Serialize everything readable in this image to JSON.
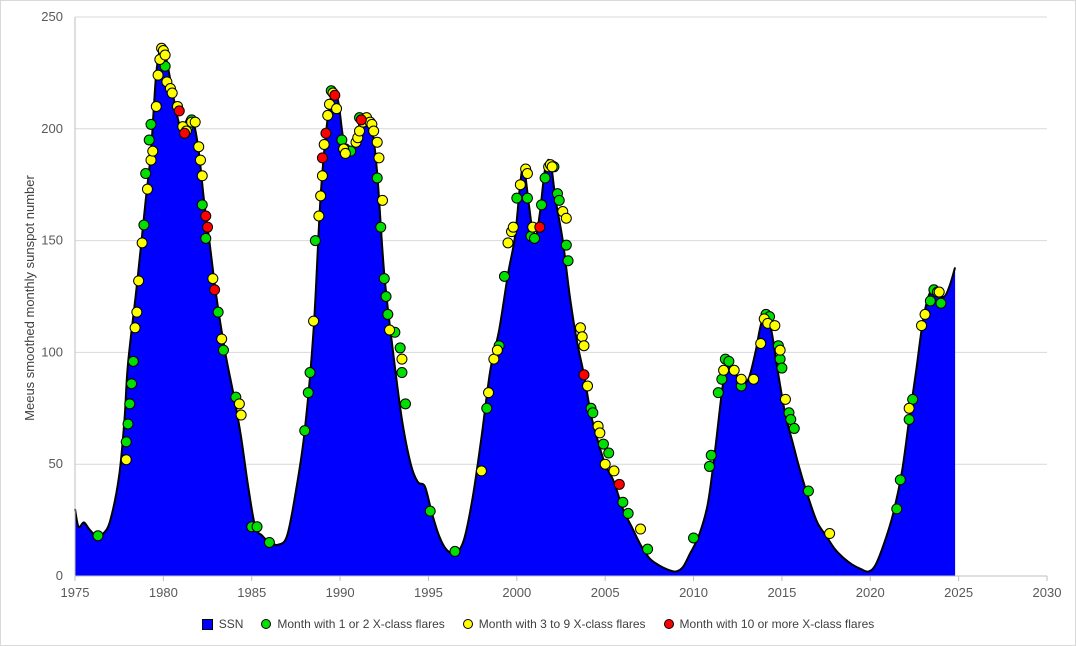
{
  "chart_data": {
    "type": "area",
    "ylabel": "Meeus smoothed monthly sunspot number",
    "xlim": [
      1975,
      2030
    ],
    "ylim": [
      0,
      250
    ],
    "x_ticks": [
      1975,
      1980,
      1985,
      1990,
      1995,
      2000,
      2005,
      2010,
      2015,
      2020,
      2025,
      2030
    ],
    "y_ticks": [
      0,
      50,
      100,
      150,
      200,
      250
    ],
    "grid": "horizontal",
    "legend_position": "bottom",
    "colors": {
      "ssn": "#0000ff",
      "x12": "#00e000",
      "x39": "#ffff00",
      "x10": "#ff0000"
    },
    "ssn_series": {
      "name": "SSN",
      "points": [
        [
          1975.0,
          30
        ],
        [
          1975.2,
          22
        ],
        [
          1975.5,
          24
        ],
        [
          1975.8,
          21
        ],
        [
          1976.2,
          18
        ],
        [
          1976.6,
          19
        ],
        [
          1977.0,
          25
        ],
        [
          1977.5,
          45
        ],
        [
          1977.8,
          70
        ],
        [
          1978.0,
          95
        ],
        [
          1978.5,
          130
        ],
        [
          1979.0,
          168
        ],
        [
          1979.3,
          190
        ],
        [
          1979.6,
          225
        ],
        [
          1979.9,
          237
        ],
        [
          1980.2,
          230
        ],
        [
          1980.6,
          213
        ],
        [
          1981.0,
          200
        ],
        [
          1981.4,
          205
        ],
        [
          1981.7,
          203
        ],
        [
          1982.0,
          190
        ],
        [
          1982.3,
          168
        ],
        [
          1982.6,
          150
        ],
        [
          1983.0,
          125
        ],
        [
          1983.5,
          100
        ],
        [
          1984.0,
          80
        ],
        [
          1984.4,
          62
        ],
        [
          1984.8,
          40
        ],
        [
          1985.2,
          22
        ],
        [
          1985.6,
          18
        ],
        [
          1986.0,
          15
        ],
        [
          1986.5,
          14
        ],
        [
          1987.0,
          18
        ],
        [
          1987.5,
          38
        ],
        [
          1988.0,
          65
        ],
        [
          1988.5,
          110
        ],
        [
          1988.9,
          170
        ],
        [
          1989.3,
          205
        ],
        [
          1989.6,
          217
        ],
        [
          1989.9,
          212
        ],
        [
          1990.2,
          195
        ],
        [
          1990.6,
          190
        ],
        [
          1991.0,
          200
        ],
        [
          1991.4,
          205
        ],
        [
          1991.8,
          200
        ],
        [
          1992.1,
          180
        ],
        [
          1992.5,
          135
        ],
        [
          1993.0,
          100
        ],
        [
          1993.5,
          70
        ],
        [
          1994.0,
          50
        ],
        [
          1994.4,
          42
        ],
        [
          1994.8,
          40
        ],
        [
          1995.2,
          28
        ],
        [
          1995.6,
          18
        ],
        [
          1996.0,
          12
        ],
        [
          1996.5,
          10
        ],
        [
          1997.0,
          16
        ],
        [
          1997.5,
          35
        ],
        [
          1998.0,
          62
        ],
        [
          1998.5,
          92
        ],
        [
          1999.0,
          110
        ],
        [
          1999.5,
          135
        ],
        [
          1999.9,
          152
        ],
        [
          2000.2,
          176
        ],
        [
          2000.4,
          183
        ],
        [
          2000.7,
          165
        ],
        [
          2001.0,
          150
        ],
        [
          2001.3,
          162
        ],
        [
          2001.6,
          182
        ],
        [
          2001.9,
          185
        ],
        [
          2002.2,
          168
        ],
        [
          2002.6,
          150
        ],
        [
          2003.0,
          125
        ],
        [
          2003.4,
          105
        ],
        [
          2003.8,
          90
        ],
        [
          2004.2,
          72
        ],
        [
          2004.6,
          60
        ],
        [
          2005.0,
          50
        ],
        [
          2005.5,
          42
        ],
        [
          2006.0,
          30
        ],
        [
          2006.5,
          22
        ],
        [
          2007.0,
          14
        ],
        [
          2007.5,
          8
        ],
        [
          2008.0,
          5
        ],
        [
          2008.5,
          3
        ],
        [
          2009.0,
          2
        ],
        [
          2009.4,
          4
        ],
        [
          2009.8,
          10
        ],
        [
          2010.3,
          18
        ],
        [
          2010.8,
          32
        ],
        [
          2011.2,
          55
        ],
        [
          2011.6,
          82
        ],
        [
          2011.9,
          97
        ],
        [
          2012.3,
          92
        ],
        [
          2012.7,
          87
        ],
        [
          2013.1,
          88
        ],
        [
          2013.5,
          100
        ],
        [
          2013.8,
          112
        ],
        [
          2014.1,
          117
        ],
        [
          2014.4,
          110
        ],
        [
          2014.8,
          90
        ],
        [
          2015.2,
          72
        ],
        [
          2015.6,
          60
        ],
        [
          2016.0,
          48
        ],
        [
          2016.5,
          35
        ],
        [
          2017.0,
          24
        ],
        [
          2017.5,
          18
        ],
        [
          2018.0,
          12
        ],
        [
          2018.5,
          8
        ],
        [
          2019.0,
          5
        ],
        [
          2019.5,
          3
        ],
        [
          2019.9,
          2
        ],
        [
          2020.3,
          5
        ],
        [
          2020.8,
          15
        ],
        [
          2021.3,
          28
        ],
        [
          2021.8,
          47
        ],
        [
          2022.2,
          70
        ],
        [
          2022.6,
          92
        ],
        [
          2023.0,
          115
        ],
        [
          2023.4,
          127
        ],
        [
          2023.8,
          126
        ],
        [
          2024.2,
          125
        ],
        [
          2024.5,
          130
        ],
        [
          2024.8,
          138
        ]
      ]
    },
    "flare_series": [
      {
        "name": "Month with 1 or 2 X-class flares",
        "color_key": "x12",
        "points": [
          [
            1976.3,
            18
          ],
          [
            1977.9,
            60
          ],
          [
            1978.0,
            68
          ],
          [
            1978.1,
            77
          ],
          [
            1978.2,
            86
          ],
          [
            1978.3,
            96
          ],
          [
            1978.9,
            157
          ],
          [
            1979.0,
            180
          ],
          [
            1979.2,
            195
          ],
          [
            1979.3,
            202
          ],
          [
            1980.1,
            228
          ],
          [
            1981.4,
            201
          ],
          [
            1981.6,
            204
          ],
          [
            1982.2,
            166
          ],
          [
            1982.4,
            151
          ],
          [
            1983.1,
            118
          ],
          [
            1983.4,
            101
          ],
          [
            1984.1,
            80
          ],
          [
            1985.0,
            22
          ],
          [
            1985.3,
            22
          ],
          [
            1986.0,
            15
          ],
          [
            1988.0,
            65
          ],
          [
            1988.2,
            82
          ],
          [
            1988.3,
            91
          ],
          [
            1988.6,
            150
          ],
          [
            1989.5,
            217
          ],
          [
            1990.1,
            195
          ],
          [
            1990.3,
            191
          ],
          [
            1990.6,
            190
          ],
          [
            1991.1,
            205
          ],
          [
            1992.1,
            178
          ],
          [
            1992.3,
            156
          ],
          [
            1992.5,
            133
          ],
          [
            1992.6,
            125
          ],
          [
            1992.7,
            117
          ],
          [
            1993.1,
            109
          ],
          [
            1993.4,
            102
          ],
          [
            1993.5,
            91
          ],
          [
            1993.7,
            77
          ],
          [
            1995.1,
            29
          ],
          [
            1996.5,
            11
          ],
          [
            1998.3,
            75
          ],
          [
            1999.0,
            103
          ],
          [
            1999.3,
            134
          ],
          [
            2000.0,
            169
          ],
          [
            2000.6,
            169
          ],
          [
            2000.8,
            152
          ],
          [
            2001.0,
            151
          ],
          [
            2001.4,
            166
          ],
          [
            2001.6,
            178
          ],
          [
            2002.1,
            183
          ],
          [
            2002.3,
            171
          ],
          [
            2002.4,
            168
          ],
          [
            2002.8,
            148
          ],
          [
            2002.9,
            141
          ],
          [
            2004.2,
            75
          ],
          [
            2004.3,
            73
          ],
          [
            2004.9,
            59
          ],
          [
            2005.2,
            55
          ],
          [
            2006.0,
            33
          ],
          [
            2006.3,
            28
          ],
          [
            2007.4,
            12
          ],
          [
            2010.0,
            17
          ],
          [
            2010.9,
            49
          ],
          [
            2011.0,
            54
          ],
          [
            2011.4,
            82
          ],
          [
            2011.6,
            88
          ],
          [
            2011.8,
            97
          ],
          [
            2012.0,
            96
          ],
          [
            2012.7,
            85
          ],
          [
            2014.1,
            117
          ],
          [
            2014.3,
            116
          ],
          [
            2014.8,
            103
          ],
          [
            2014.9,
            97
          ],
          [
            2015.0,
            93
          ],
          [
            2015.4,
            73
          ],
          [
            2015.5,
            70
          ],
          [
            2015.7,
            66
          ],
          [
            2016.5,
            38
          ],
          [
            2021.5,
            30
          ],
          [
            2021.7,
            43
          ],
          [
            2022.2,
            70
          ],
          [
            2022.4,
            79
          ],
          [
            2023.4,
            123
          ],
          [
            2023.6,
            128
          ],
          [
            2023.8,
            127
          ],
          [
            2024.0,
            122
          ]
        ]
      },
      {
        "name": "Month with 3 to 9 X-class flares",
        "color_key": "x39",
        "points": [
          [
            1977.9,
            52
          ],
          [
            1978.4,
            111
          ],
          [
            1978.5,
            118
          ],
          [
            1978.6,
            132
          ],
          [
            1978.8,
            149
          ],
          [
            1979.1,
            173
          ],
          [
            1979.3,
            186
          ],
          [
            1979.4,
            190
          ],
          [
            1979.6,
            210
          ],
          [
            1979.7,
            224
          ],
          [
            1979.8,
            231
          ],
          [
            1979.9,
            236
          ],
          [
            1980.0,
            235
          ],
          [
            1980.1,
            233
          ],
          [
            1980.2,
            221
          ],
          [
            1980.4,
            218
          ],
          [
            1980.5,
            216
          ],
          [
            1980.8,
            210
          ],
          [
            1981.1,
            201
          ],
          [
            1981.3,
            199
          ],
          [
            1981.6,
            203
          ],
          [
            1981.8,
            203
          ],
          [
            1982.0,
            192
          ],
          [
            1982.1,
            186
          ],
          [
            1982.2,
            179
          ],
          [
            1982.8,
            133
          ],
          [
            1983.3,
            106
          ],
          [
            1984.3,
            77
          ],
          [
            1984.4,
            72
          ],
          [
            1988.5,
            114
          ],
          [
            1988.8,
            161
          ],
          [
            1988.9,
            170
          ],
          [
            1989.0,
            179
          ],
          [
            1989.1,
            193
          ],
          [
            1989.3,
            206
          ],
          [
            1989.4,
            211
          ],
          [
            1989.6,
            216
          ],
          [
            1989.8,
            209
          ],
          [
            1990.2,
            191
          ],
          [
            1990.3,
            189
          ],
          [
            1990.9,
            194
          ],
          [
            1991.0,
            196
          ],
          [
            1991.1,
            199
          ],
          [
            1991.3,
            203
          ],
          [
            1991.5,
            205
          ],
          [
            1991.7,
            203
          ],
          [
            1991.8,
            202
          ],
          [
            1991.9,
            199
          ],
          [
            1992.1,
            194
          ],
          [
            1992.2,
            187
          ],
          [
            1992.4,
            168
          ],
          [
            1992.8,
            110
          ],
          [
            1993.5,
            97
          ],
          [
            1998.0,
            47
          ],
          [
            1998.4,
            82
          ],
          [
            1998.7,
            97
          ],
          [
            1998.9,
            101
          ],
          [
            1999.5,
            149
          ],
          [
            1999.7,
            154
          ],
          [
            1999.8,
            156
          ],
          [
            2000.2,
            175
          ],
          [
            2000.5,
            182
          ],
          [
            2000.6,
            180
          ],
          [
            2000.9,
            156
          ],
          [
            2001.8,
            183
          ],
          [
            2001.9,
            184
          ],
          [
            2002.0,
            183
          ],
          [
            2002.6,
            163
          ],
          [
            2002.8,
            160
          ],
          [
            2003.6,
            111
          ],
          [
            2003.7,
            107
          ],
          [
            2003.8,
            103
          ],
          [
            2004.0,
            85
          ],
          [
            2004.6,
            67
          ],
          [
            2004.7,
            64
          ],
          [
            2005.0,
            50
          ],
          [
            2005.5,
            47
          ],
          [
            2007.0,
            21
          ],
          [
            2011.7,
            92
          ],
          [
            2012.3,
            92
          ],
          [
            2012.7,
            88
          ],
          [
            2013.4,
            88
          ],
          [
            2013.8,
            104
          ],
          [
            2014.0,
            115
          ],
          [
            2014.2,
            113
          ],
          [
            2014.6,
            112
          ],
          [
            2014.9,
            101
          ],
          [
            2015.2,
            79
          ],
          [
            2017.7,
            19
          ],
          [
            2022.2,
            75
          ],
          [
            2022.9,
            112
          ],
          [
            2023.1,
            117
          ],
          [
            2023.9,
            127
          ]
        ]
      },
      {
        "name": "Month with 10 or more X-class flares",
        "color_key": "x10",
        "points": [
          [
            1980.9,
            208
          ],
          [
            1981.2,
            198
          ],
          [
            1982.4,
            161
          ],
          [
            1982.5,
            156
          ],
          [
            1982.9,
            128
          ],
          [
            1989.0,
            187
          ],
          [
            1989.2,
            198
          ],
          [
            1989.7,
            215
          ],
          [
            1991.2,
            204
          ],
          [
            2001.3,
            156
          ],
          [
            2003.8,
            90
          ],
          [
            2005.8,
            41
          ]
        ]
      }
    ]
  },
  "legend": {
    "ssn_label": "SSN",
    "x12_label": "Month with 1 or 2 X-class flares",
    "x39_label": "Month with 3 to 9 X-class flares",
    "x10_label": "Month with 10 or more X-class flares"
  }
}
